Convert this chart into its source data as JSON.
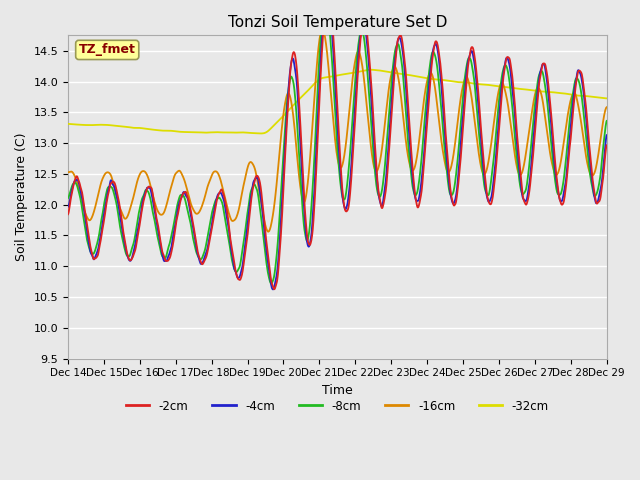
{
  "title": "Tonzi Soil Temperature Set D",
  "xlabel": "Time",
  "ylabel": "Soil Temperature (C)",
  "ylim": [
    9.5,
    14.75
  ],
  "annotation_text": "TZ_fmet",
  "annotation_bg": "#FFFF99",
  "annotation_border": "#999955",
  "annotation_text_color": "#880000",
  "background_color": "#e8e8e8",
  "grid_color": "white",
  "colors": {
    "-2cm": "#dd2222",
    "-4cm": "#2222cc",
    "-8cm": "#22bb22",
    "-16cm": "#dd8800",
    "-32cm": "#dddd00"
  },
  "x_tick_labels": [
    "Dec 14",
    "Dec 15",
    "Dec 16",
    "Dec 17",
    "Dec 18",
    "Dec 19",
    "Dec 20",
    "Dec 21",
    "Dec 22",
    "Dec 23",
    "Dec 24",
    "Dec 25",
    "Dec 26",
    "Dec 27",
    "Dec 28",
    "Dec 29"
  ],
  "yticks": [
    9.5,
    10.0,
    10.5,
    11.0,
    11.5,
    12.0,
    12.5,
    13.0,
    13.5,
    14.0,
    14.5
  ]
}
